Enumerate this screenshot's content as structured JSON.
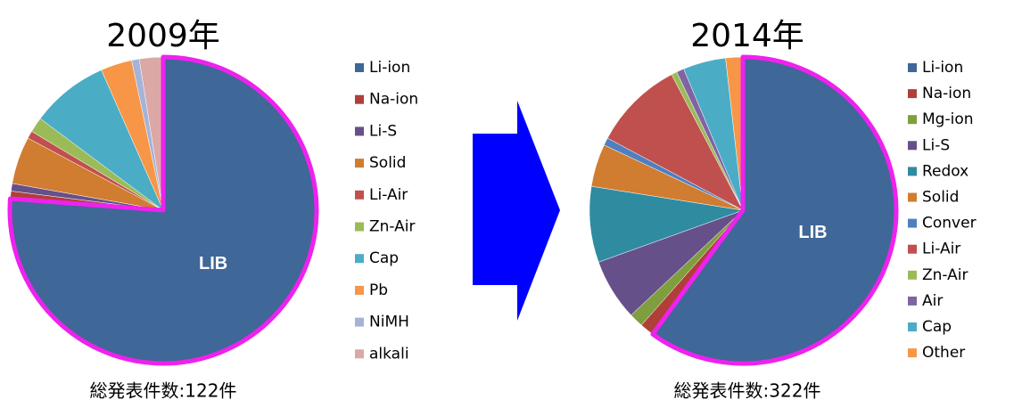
{
  "chart_data": [
    {
      "type": "pie",
      "title": "2009年",
      "label": "LIB",
      "note": "総発表件数:122件",
      "highlight_color": "#ee22ee",
      "categories": [
        "Li-ion",
        "Na-ion",
        "Li-S",
        "Solid",
        "Li-Air",
        "Zn-Air",
        "Cap",
        "Pb",
        "NiMH",
        "alkali"
      ],
      "values": [
        76.2,
        0.8,
        0.8,
        5.0,
        0.8,
        1.6,
        8.2,
        3.3,
        0.8,
        2.5
      ],
      "colors": [
        "#3f6797",
        "#b03f3a",
        "#66508a",
        "#d07c31",
        "#c0504d",
        "#9bbb59",
        "#4bacc6",
        "#f79646",
        "#a5b3d6",
        "#dba8a6"
      ]
    },
    {
      "type": "pie",
      "title": "2014年",
      "label": "LIB",
      "note": "総発表件数:322件",
      "highlight_color": "#ee22ee",
      "categories": [
        "Li-ion",
        "Na-ion",
        "Mg-ion",
        "Li-S",
        "Redox",
        "Solid",
        "Conver",
        "Li-Air",
        "Zn-Air",
        "Air",
        "Cap",
        "Other"
      ],
      "values": [
        60,
        1.5,
        1.5,
        6.5,
        8,
        4.5,
        0.8,
        9.5,
        0.6,
        0.8,
        4.5,
        1.8
      ],
      "colors": [
        "#3f6797",
        "#b03f3a",
        "#7f9e3e",
        "#66508a",
        "#2f8ba0",
        "#d07c31",
        "#4f7fc0",
        "#c0504d",
        "#9bbb59",
        "#8064a2",
        "#4bacc6",
        "#f79646"
      ]
    }
  ]
}
